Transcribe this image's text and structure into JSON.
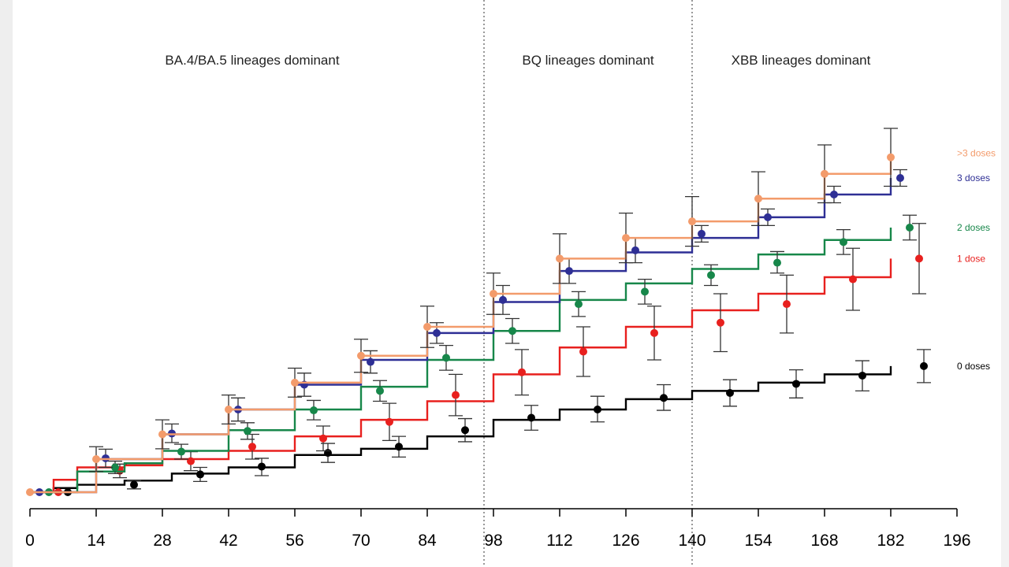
{
  "chart_data": {
    "type": "line",
    "title": "",
    "xlabel": "",
    "ylabel": "",
    "xlim": [
      0,
      196
    ],
    "ylim": [
      0,
      1
    ],
    "x_ticks": [
      "0",
      "14",
      "28",
      "42",
      "56",
      "70",
      "84",
      "98",
      "112",
      "126",
      "140",
      "154",
      "168",
      "182",
      "196"
    ],
    "x_tick_values": [
      0,
      14,
      28,
      42,
      56,
      70,
      84,
      98,
      112,
      126,
      140,
      154,
      168,
      182,
      196
    ],
    "grid": false,
    "legend_position": "right",
    "period_dividers": [
      96,
      140
    ],
    "annotations": [
      {
        "name": "period-ba45-label",
        "text": "BA.4/BA.5 lineages dominant",
        "x": 47
      },
      {
        "name": "period-bq-label",
        "text": "BQ lineages dominant",
        "x": 118
      },
      {
        "name": "period-xbb-label",
        "text": "XBB lineages dominant",
        "x": 163
      }
    ],
    "series": [
      {
        "name": "0 doses",
        "color": "#000000",
        "label_y": 0.305,
        "line": [
          [
            0,
            0
          ],
          [
            5,
            0.01
          ],
          [
            10,
            0.018
          ],
          [
            20,
            0.028
          ],
          [
            30,
            0.045
          ],
          [
            42,
            0.06
          ],
          [
            56,
            0.09
          ],
          [
            70,
            0.105
          ],
          [
            84,
            0.135
          ],
          [
            98,
            0.175
          ],
          [
            112,
            0.2
          ],
          [
            126,
            0.225
          ],
          [
            140,
            0.245
          ],
          [
            154,
            0.265
          ],
          [
            168,
            0.285
          ],
          [
            182,
            0.305
          ]
        ],
        "points": [
          {
            "x": 8,
            "y": 0.0,
            "lo": 0.0,
            "hi": 0.0
          },
          {
            "x": 22,
            "y": 0.018,
            "lo": 0.008,
            "hi": 0.028
          },
          {
            "x": 36,
            "y": 0.043,
            "lo": 0.026,
            "hi": 0.06
          },
          {
            "x": 49,
            "y": 0.062,
            "lo": 0.04,
            "hi": 0.082
          },
          {
            "x": 63,
            "y": 0.095,
            "lo": 0.072,
            "hi": 0.118
          },
          {
            "x": 78,
            "y": 0.11,
            "lo": 0.085,
            "hi": 0.135
          },
          {
            "x": 92,
            "y": 0.15,
            "lo": 0.122,
            "hi": 0.178
          },
          {
            "x": 106,
            "y": 0.18,
            "lo": 0.15,
            "hi": 0.21
          },
          {
            "x": 120,
            "y": 0.2,
            "lo": 0.17,
            "hi": 0.232
          },
          {
            "x": 134,
            "y": 0.228,
            "lo": 0.198,
            "hi": 0.26
          },
          {
            "x": 148,
            "y": 0.24,
            "lo": 0.208,
            "hi": 0.272
          },
          {
            "x": 162,
            "y": 0.262,
            "lo": 0.228,
            "hi": 0.296
          },
          {
            "x": 176,
            "y": 0.282,
            "lo": 0.245,
            "hi": 0.318
          },
          {
            "x": 189,
            "y": 0.305,
            "lo": 0.265,
            "hi": 0.345
          }
        ]
      },
      {
        "name": "1 dose",
        "color": "#e8201e",
        "label_y": 0.565,
        "line": [
          [
            0,
            0
          ],
          [
            5,
            0.03
          ],
          [
            10,
            0.06
          ],
          [
            20,
            0.065
          ],
          [
            28,
            0.08
          ],
          [
            42,
            0.1
          ],
          [
            56,
            0.135
          ],
          [
            70,
            0.175
          ],
          [
            84,
            0.22
          ],
          [
            98,
            0.285
          ],
          [
            112,
            0.35
          ],
          [
            126,
            0.4
          ],
          [
            140,
            0.44
          ],
          [
            154,
            0.48
          ],
          [
            168,
            0.52
          ],
          [
            182,
            0.565
          ]
        ],
        "points": [
          {
            "x": 6,
            "y": 0.0,
            "lo": 0.0,
            "hi": 0.0
          },
          {
            "x": 19,
            "y": 0.052,
            "lo": 0.035,
            "hi": 0.068
          },
          {
            "x": 34,
            "y": 0.075,
            "lo": 0.052,
            "hi": 0.098
          },
          {
            "x": 47,
            "y": 0.11,
            "lo": 0.08,
            "hi": 0.14
          },
          {
            "x": 62,
            "y": 0.13,
            "lo": 0.1,
            "hi": 0.16
          },
          {
            "x": 76,
            "y": 0.17,
            "lo": 0.125,
            "hi": 0.215
          },
          {
            "x": 90,
            "y": 0.235,
            "lo": 0.185,
            "hi": 0.285
          },
          {
            "x": 104,
            "y": 0.29,
            "lo": 0.235,
            "hi": 0.345
          },
          {
            "x": 117,
            "y": 0.34,
            "lo": 0.28,
            "hi": 0.4
          },
          {
            "x": 132,
            "y": 0.385,
            "lo": 0.32,
            "hi": 0.45
          },
          {
            "x": 146,
            "y": 0.41,
            "lo": 0.34,
            "hi": 0.48
          },
          {
            "x": 160,
            "y": 0.455,
            "lo": 0.385,
            "hi": 0.525
          },
          {
            "x": 174,
            "y": 0.515,
            "lo": 0.44,
            "hi": 0.59
          },
          {
            "x": 188,
            "y": 0.565,
            "lo": 0.48,
            "hi": 0.65
          }
        ]
      },
      {
        "name": "2 doses",
        "color": "#17874a",
        "label_y": 0.64,
        "line": [
          [
            0,
            0
          ],
          [
            10,
            0.05
          ],
          [
            20,
            0.07
          ],
          [
            28,
            0.1
          ],
          [
            42,
            0.15
          ],
          [
            56,
            0.2
          ],
          [
            70,
            0.255
          ],
          [
            84,
            0.32
          ],
          [
            98,
            0.39
          ],
          [
            112,
            0.465
          ],
          [
            126,
            0.505
          ],
          [
            140,
            0.54
          ],
          [
            154,
            0.575
          ],
          [
            168,
            0.61
          ],
          [
            182,
            0.64
          ]
        ],
        "points": [
          {
            "x": 4,
            "y": 0.0,
            "lo": 0.0,
            "hi": 0.0
          },
          {
            "x": 18,
            "y": 0.06,
            "lo": 0.045,
            "hi": 0.075
          },
          {
            "x": 32,
            "y": 0.098,
            "lo": 0.08,
            "hi": 0.116
          },
          {
            "x": 46,
            "y": 0.148,
            "lo": 0.128,
            "hi": 0.168
          },
          {
            "x": 60,
            "y": 0.198,
            "lo": 0.175,
            "hi": 0.222
          },
          {
            "x": 74,
            "y": 0.245,
            "lo": 0.22,
            "hi": 0.27
          },
          {
            "x": 88,
            "y": 0.325,
            "lo": 0.295,
            "hi": 0.355
          },
          {
            "x": 102,
            "y": 0.39,
            "lo": 0.36,
            "hi": 0.42
          },
          {
            "x": 116,
            "y": 0.455,
            "lo": 0.425,
            "hi": 0.485
          },
          {
            "x": 130,
            "y": 0.485,
            "lo": 0.455,
            "hi": 0.515
          },
          {
            "x": 144,
            "y": 0.525,
            "lo": 0.5,
            "hi": 0.55
          },
          {
            "x": 158,
            "y": 0.555,
            "lo": 0.53,
            "hi": 0.582
          },
          {
            "x": 172,
            "y": 0.605,
            "lo": 0.575,
            "hi": 0.635
          },
          {
            "x": 186,
            "y": 0.64,
            "lo": 0.61,
            "hi": 0.67
          }
        ]
      },
      {
        "name": "3 doses",
        "color": "#2e2f95",
        "label_y": 0.76,
        "line": [
          [
            0,
            0
          ],
          [
            14,
            0.08
          ],
          [
            28,
            0.14
          ],
          [
            42,
            0.2
          ],
          [
            56,
            0.26
          ],
          [
            70,
            0.32
          ],
          [
            84,
            0.385
          ],
          [
            98,
            0.46
          ],
          [
            112,
            0.535
          ],
          [
            126,
            0.58
          ],
          [
            140,
            0.615
          ],
          [
            154,
            0.665
          ],
          [
            168,
            0.72
          ],
          [
            182,
            0.76
          ]
        ],
        "points": [
          {
            "x": 2,
            "y": 0.0,
            "lo": 0.0,
            "hi": 0.0
          },
          {
            "x": 16,
            "y": 0.082,
            "lo": 0.06,
            "hi": 0.104
          },
          {
            "x": 30,
            "y": 0.142,
            "lo": 0.12,
            "hi": 0.165
          },
          {
            "x": 44,
            "y": 0.2,
            "lo": 0.172,
            "hi": 0.228
          },
          {
            "x": 58,
            "y": 0.26,
            "lo": 0.232,
            "hi": 0.288
          },
          {
            "x": 72,
            "y": 0.315,
            "lo": 0.288,
            "hi": 0.342
          },
          {
            "x": 86,
            "y": 0.385,
            "lo": 0.36,
            "hi": 0.41
          },
          {
            "x": 100,
            "y": 0.465,
            "lo": 0.43,
            "hi": 0.5
          },
          {
            "x": 114,
            "y": 0.535,
            "lo": 0.505,
            "hi": 0.565
          },
          {
            "x": 128,
            "y": 0.585,
            "lo": 0.555,
            "hi": 0.615
          },
          {
            "x": 142,
            "y": 0.625,
            "lo": 0.605,
            "hi": 0.645
          },
          {
            "x": 156,
            "y": 0.665,
            "lo": 0.645,
            "hi": 0.685
          },
          {
            "x": 170,
            "y": 0.72,
            "lo": 0.7,
            "hi": 0.74
          },
          {
            "x": 184,
            "y": 0.76,
            "lo": 0.74,
            "hi": 0.78
          }
        ]
      },
      {
        "name": ">3 doses",
        "color": "#f39b6b",
        "label_y": 0.82,
        "line": [
          [
            0,
            0
          ],
          [
            14,
            0.08
          ],
          [
            28,
            0.14
          ],
          [
            42,
            0.2
          ],
          [
            56,
            0.265
          ],
          [
            70,
            0.33
          ],
          [
            84,
            0.4
          ],
          [
            98,
            0.48
          ],
          [
            112,
            0.565
          ],
          [
            126,
            0.615
          ],
          [
            140,
            0.655
          ],
          [
            154,
            0.71
          ],
          [
            168,
            0.77
          ],
          [
            182,
            0.81
          ]
        ],
        "points": [
          {
            "x": 0,
            "y": 0.0,
            "lo": 0.0,
            "hi": 0.0
          },
          {
            "x": 14,
            "y": 0.08,
            "lo": 0.05,
            "hi": 0.11
          },
          {
            "x": 28,
            "y": 0.14,
            "lo": 0.105,
            "hi": 0.175
          },
          {
            "x": 42,
            "y": 0.2,
            "lo": 0.165,
            "hi": 0.235
          },
          {
            "x": 56,
            "y": 0.265,
            "lo": 0.23,
            "hi": 0.3
          },
          {
            "x": 70,
            "y": 0.33,
            "lo": 0.29,
            "hi": 0.37
          },
          {
            "x": 84,
            "y": 0.4,
            "lo": 0.35,
            "hi": 0.45
          },
          {
            "x": 98,
            "y": 0.48,
            "lo": 0.43,
            "hi": 0.53
          },
          {
            "x": 112,
            "y": 0.565,
            "lo": 0.505,
            "hi": 0.625
          },
          {
            "x": 126,
            "y": 0.615,
            "lo": 0.555,
            "hi": 0.675
          },
          {
            "x": 140,
            "y": 0.655,
            "lo": 0.595,
            "hi": 0.715
          },
          {
            "x": 154,
            "y": 0.71,
            "lo": 0.645,
            "hi": 0.775
          },
          {
            "x": 168,
            "y": 0.77,
            "lo": 0.7,
            "hi": 0.84
          },
          {
            "x": 182,
            "y": 0.81,
            "lo": 0.74,
            "hi": 0.88
          }
        ]
      }
    ]
  }
}
